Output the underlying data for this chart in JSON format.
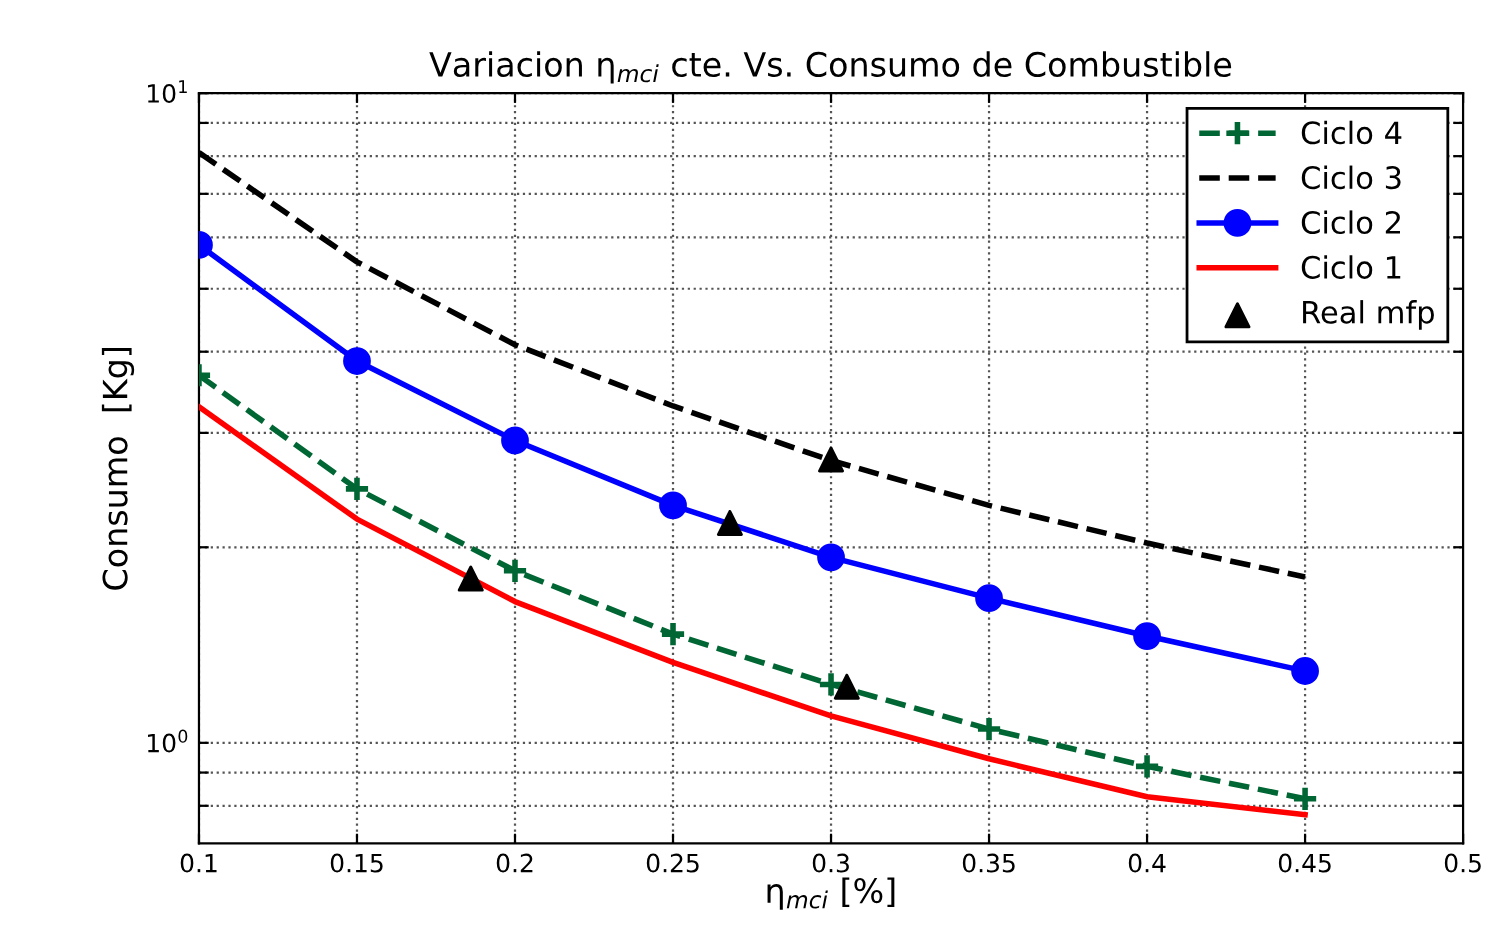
{
  "chart_data": {
    "type": "line",
    "title": "Variacion η$_{mci}$ cte. Vs. Consumo de Combustible",
    "xlabel": "η$_{mci}$ [%]",
    "ylabel": "Consumo  [Kg]",
    "log": "y",
    "grid": true,
    "legend": "top right",
    "xlim": [
      0.1,
      0.5
    ],
    "xticks": [
      0.1,
      0.15,
      0.2,
      0.25,
      0.3,
      0.35,
      0.4,
      0.45,
      0.5
    ],
    "ylim": [
      0.7,
      10
    ],
    "yticks": [
      {
        "value": 0.8,
        "label": null
      },
      {
        "value": 0.9,
        "label": null
      },
      {
        "value": 1,
        "label": "10$^{0}$"
      },
      {
        "value": 2,
        "label": null
      },
      {
        "value": 3,
        "label": null
      },
      {
        "value": 4,
        "label": null
      },
      {
        "value": 5,
        "label": null
      },
      {
        "value": 6,
        "label": null
      },
      {
        "value": 7,
        "label": null
      },
      {
        "value": 8,
        "label": null
      },
      {
        "value": 9,
        "label": null
      },
      {
        "value": 10,
        "label": "10$^{1}$"
      }
    ],
    "x": [
      0.1,
      0.15,
      0.2,
      0.25,
      0.3,
      0.35,
      0.4,
      0.45
    ],
    "series": [
      {
        "name": "Ciclo 4",
        "color": "#006633",
        "line_style": "dashed",
        "marker": "cross",
        "values": [
          3.68,
          2.46,
          1.84,
          1.47,
          1.23,
          1.05,
          0.92,
          0.82
        ]
      },
      {
        "name": "Ciclo 3",
        "color": "#000000",
        "line_style": "dashed",
        "marker": "none",
        "values": [
          8.1,
          5.5,
          4.1,
          3.3,
          2.72,
          2.32,
          2.03,
          1.8
        ]
      },
      {
        "name": "Ciclo 2",
        "color": "#0000ff",
        "line_style": "solid",
        "marker": "circle",
        "values": [
          5.84,
          3.87,
          2.92,
          2.32,
          1.93,
          1.67,
          1.46,
          1.29
        ]
      },
      {
        "name": "Ciclo 1",
        "color": "#ff0000",
        "line_style": "solid",
        "marker": "none",
        "values": [
          3.29,
          2.21,
          1.65,
          1.33,
          1.1,
          0.945,
          0.826,
          0.775
        ]
      },
      {
        "name": "Real mfp",
        "type": "scatter",
        "color": "#000000",
        "marker": "triangle",
        "x": [
          0.186,
          0.268,
          0.3,
          0.305
        ],
        "values": [
          1.79,
          2.18,
          2.73,
          1.22
        ]
      }
    ]
  }
}
